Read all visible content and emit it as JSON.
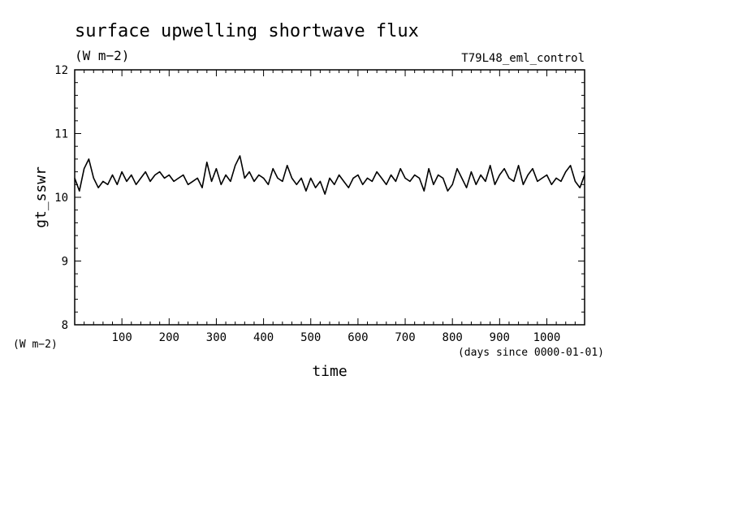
{
  "chart_data": {
    "type": "line",
    "title": "surface upwelling shortwave flux",
    "units": "(W m−2)",
    "run_label": "T79L48_eml_control",
    "ylabel": "gt_sswr",
    "y_units": "(W m−2)",
    "xlabel": "time",
    "x_units": "(days since 0000-01-01)",
    "xlim": [
      0,
      1080
    ],
    "ylim": [
      8,
      12
    ],
    "x_ticks": [
      100,
      200,
      300,
      400,
      500,
      600,
      700,
      800,
      900,
      1000
    ],
    "y_ticks": [
      8,
      9,
      10,
      11,
      12
    ],
    "grid": false,
    "line_color": "#000000",
    "series": [
      {
        "x": [
          0,
          10,
          20,
          30,
          40,
          50,
          60,
          70,
          80,
          90,
          100,
          110,
          120,
          130,
          140,
          150,
          160,
          170,
          180,
          190,
          200,
          210,
          220,
          230,
          240,
          250,
          260,
          270,
          280,
          290,
          300,
          310,
          320,
          330,
          340,
          350,
          360,
          370,
          380,
          390,
          400,
          410,
          420,
          430,
          440,
          450,
          460,
          470,
          480,
          490,
          500,
          510,
          520,
          530,
          540,
          550,
          560,
          570,
          580,
          590,
          600,
          610,
          620,
          630,
          640,
          650,
          660,
          670,
          680,
          690,
          700,
          710,
          720,
          730,
          740,
          750,
          760,
          770,
          780,
          790,
          800,
          810,
          820,
          830,
          840,
          850,
          860,
          870,
          880,
          890,
          900,
          910,
          920,
          930,
          940,
          950,
          960,
          970,
          980,
          990,
          1000,
          1010,
          1020,
          1030,
          1040,
          1050,
          1060,
          1070,
          1080
        ],
        "values": [
          10.3,
          10.1,
          10.45,
          10.6,
          10.3,
          10.15,
          10.25,
          10.2,
          10.35,
          10.2,
          10.4,
          10.25,
          10.35,
          10.2,
          10.3,
          10.4,
          10.25,
          10.35,
          10.4,
          10.3,
          10.35,
          10.25,
          10.3,
          10.35,
          10.2,
          10.25,
          10.3,
          10.15,
          10.55,
          10.25,
          10.45,
          10.2,
          10.35,
          10.25,
          10.5,
          10.65,
          10.3,
          10.4,
          10.25,
          10.35,
          10.3,
          10.2,
          10.45,
          10.3,
          10.25,
          10.5,
          10.3,
          10.2,
          10.3,
          10.1,
          10.3,
          10.15,
          10.25,
          10.05,
          10.3,
          10.2,
          10.35,
          10.25,
          10.15,
          10.3,
          10.35,
          10.2,
          10.3,
          10.25,
          10.4,
          10.3,
          10.2,
          10.35,
          10.25,
          10.45,
          10.3,
          10.25,
          10.35,
          10.3,
          10.1,
          10.45,
          10.2,
          10.35,
          10.3,
          10.1,
          10.2,
          10.45,
          10.3,
          10.15,
          10.4,
          10.2,
          10.35,
          10.25,
          10.5,
          10.2,
          10.35,
          10.45,
          10.3,
          10.25,
          10.5,
          10.2,
          10.35,
          10.45,
          10.25,
          10.3,
          10.35,
          10.2,
          10.3,
          10.25,
          10.4,
          10.5,
          10.25,
          10.15,
          10.35
        ]
      }
    ]
  }
}
